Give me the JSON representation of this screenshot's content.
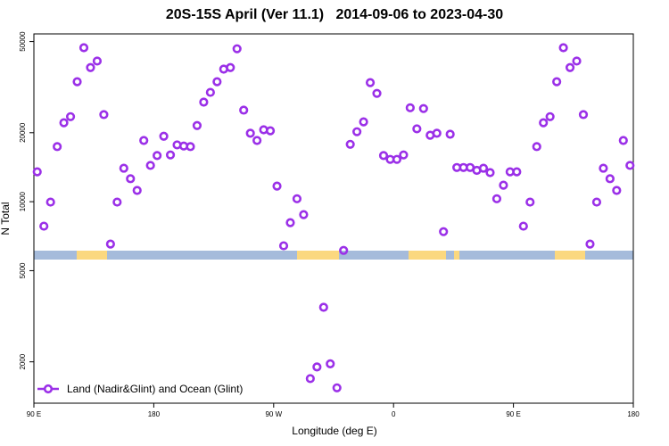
{
  "chart_data": {
    "type": "scatter",
    "title": "20S-15S April (Ver 11.1)   2014-09-06 to 2023-04-30",
    "xlabel": "Longitude (deg E)",
    "ylabel": "N Total",
    "x": [
      92.5,
      97.5,
      102.5,
      107.5,
      112.5,
      117.5,
      122.5,
      127.5,
      132.5,
      137.5,
      142.5,
      147.5,
      152.5,
      157.5,
      162.5,
      167.5,
      172.5,
      177.5,
      182.5,
      187.5,
      192.5,
      197.5,
      202.5,
      207.5,
      212.5,
      217.5,
      222.5,
      227.5,
      232.5,
      237.5,
      242.5,
      247.5,
      252.5,
      257.5,
      262.5,
      267.5,
      272.5,
      277.5,
      282.5,
      287.5,
      292.5,
      297.5,
      302.5,
      307.5,
      312.5,
      317.5,
      322.5,
      327.5,
      332.5,
      337.5,
      342.5,
      347.5,
      352.5,
      357.5,
      362.5,
      367.5,
      372.5,
      377.5,
      382.5,
      387.5,
      392.5,
      397.5,
      402.5,
      407.5,
      412.5,
      417.5,
      422.5,
      427.5,
      432.5,
      437.5,
      442.5,
      447.5,
      452.5,
      457.5,
      462.5,
      467.5,
      472.5,
      477.5,
      482.5,
      487.5,
      492.5,
      497.5,
      502.5,
      507.5,
      512.5,
      517.5,
      522.5,
      527.5,
      532.5,
      537.5
    ],
    "series": [
      {
        "name": "Land (Nadir&Glint) and Ocean (Glint)",
        "color": "#9b30e8",
        "values": [
          13500,
          7820,
          9960,
          17400,
          22100,
          23500,
          33400,
          47000,
          38500,
          41100,
          24000,
          6530,
          9960,
          14000,
          12600,
          11200,
          18500,
          14400,
          15900,
          19300,
          16000,
          17700,
          17500,
          17400,
          21500,
          27200,
          30000,
          33400,
          37900,
          38500,
          46500,
          25100,
          19900,
          18500,
          20600,
          20400,
          11700,
          6420,
          8100,
          10300,
          8780,
          1690,
          1900,
          3460,
          1960,
          1540,
          6130,
          17800,
          20200,
          22300,
          33100,
          29700,
          15900,
          15300,
          15300,
          16000,
          25700,
          20800,
          25500,
          19500,
          19900,
          7400,
          19700,
          14100,
          14100,
          14100,
          13700,
          14000,
          13400,
          10300,
          11800,
          13500,
          13500,
          7820,
          9960,
          17400,
          22100,
          23500,
          33400,
          47000,
          38500,
          41100,
          24000,
          6530,
          9960,
          14000,
          12600,
          11200,
          18500,
          14400
        ]
      }
    ],
    "xlim": [
      90,
      540
    ],
    "ylim": [
      1320,
      54000
    ],
    "log_y": true,
    "xticks": [
      {
        "value": 90,
        "label": "90 E"
      },
      180,
      {
        "value": 270,
        "label": "90 W"
      },
      {
        "value": 360,
        "label": "0"
      },
      {
        "value": 450,
        "label": "90 E"
      },
      {
        "value": 540,
        "label": "180"
      }
    ],
    "yticks": [
      2000,
      5000,
      10000,
      20000,
      50000
    ],
    "legend": "lower left"
  }
}
